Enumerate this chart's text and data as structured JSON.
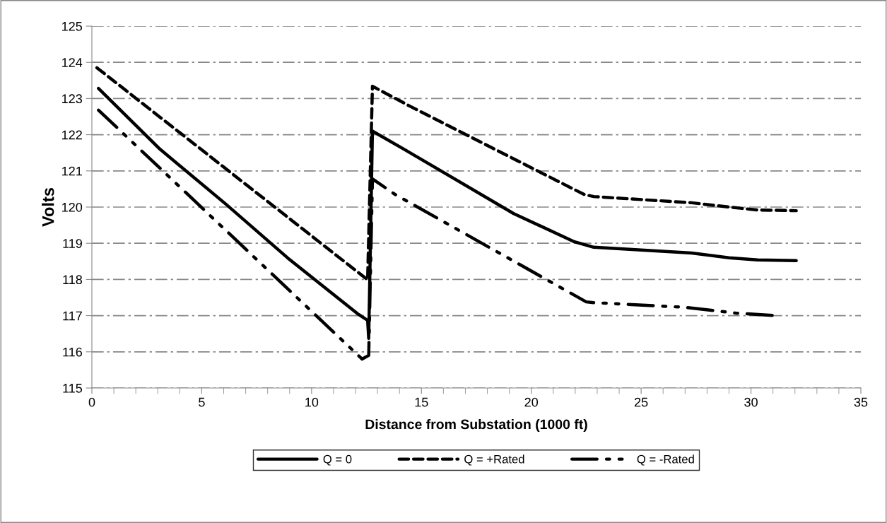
{
  "chart_data": {
    "type": "line",
    "xlabel": "Distance from Substation (1000 ft)",
    "ylabel": "Volts",
    "xlim": [
      0,
      35
    ],
    "xticks": [
      0,
      5,
      10,
      15,
      20,
      25,
      30,
      35
    ],
    "ylim": [
      115,
      125
    ],
    "yticks": [
      115,
      116,
      117,
      118,
      119,
      120,
      121,
      122,
      123,
      124,
      125
    ],
    "grid": "y",
    "legend": "bottom",
    "marker": "none",
    "series": [
      {
        "name": "Q = 0",
        "color": "#000000",
        "line_style": "solid",
        "x": [
          0.3,
          3.1,
          6.1,
          8.9,
          12.1,
          12.55,
          12.6,
          12.77,
          14.15,
          19.2,
          21.97,
          22.84,
          27.3,
          29.0,
          30.3,
          32.06
        ],
        "values": [
          123.28,
          121.6,
          120.08,
          118.6,
          117.05,
          116.87,
          116.37,
          122.1,
          121.62,
          119.82,
          119.04,
          118.89,
          118.73,
          118.6,
          118.54,
          118.52
        ]
      },
      {
        "name": "Q = +Rated",
        "color": "#000000",
        "line_style": "dashed",
        "x": [
          0.23,
          12.55,
          12.77,
          14.47,
          22.4,
          22.84,
          27.3,
          29.0,
          30.3,
          32.06
        ],
        "values": [
          123.85,
          117.99,
          123.34,
          122.79,
          120.35,
          120.29,
          120.12,
          120.0,
          119.92,
          119.9
        ]
      },
      {
        "name": "Q = -Rated",
        "color": "#000000",
        "line_style": "dashdotdot",
        "x": [
          0.3,
          12.3,
          12.6,
          12.77,
          13.8,
          22.5,
          22.84,
          27.0,
          29.3,
          31.36
        ],
        "values": [
          122.68,
          115.8,
          115.9,
          120.78,
          120.35,
          117.38,
          117.36,
          117.23,
          117.07,
          116.99
        ]
      }
    ]
  }
}
